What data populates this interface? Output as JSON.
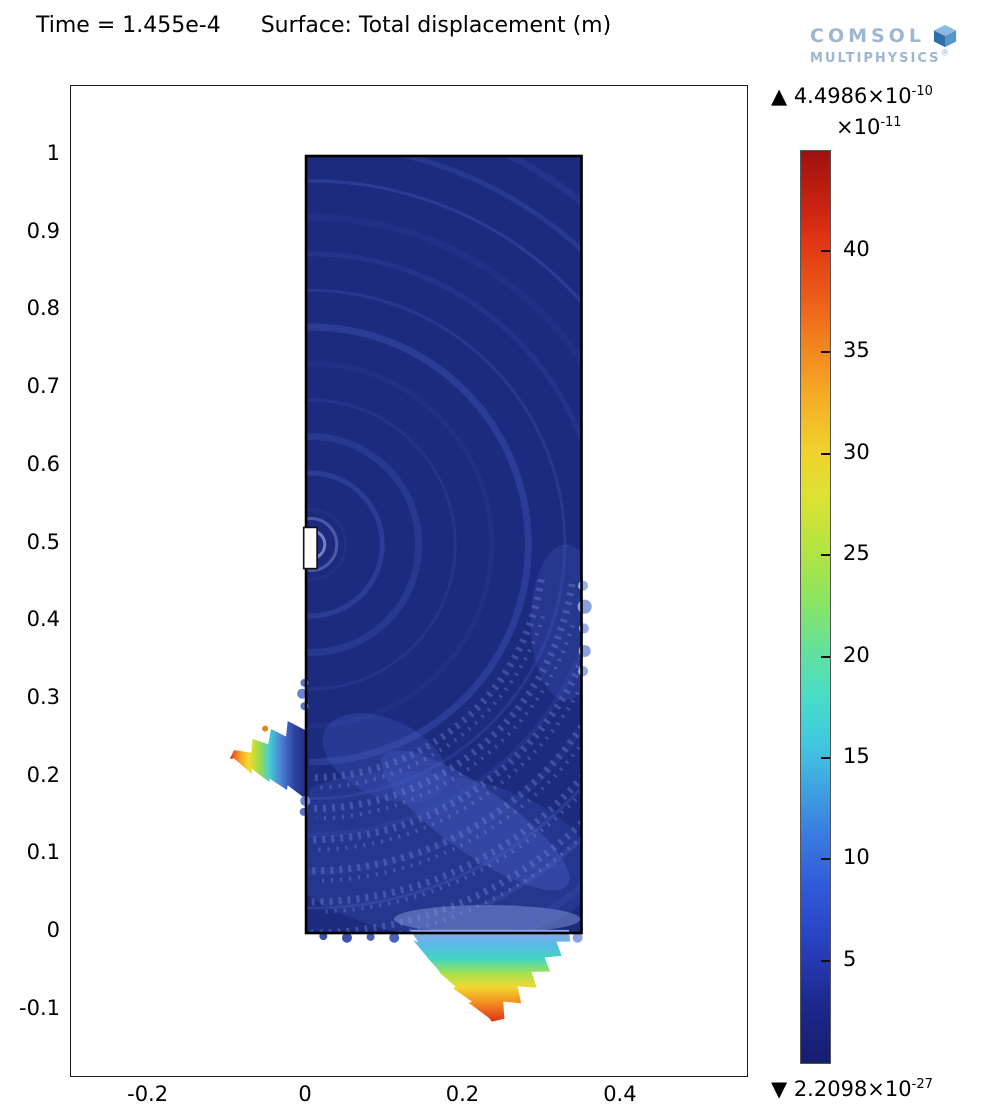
{
  "header": {
    "time_text": "Time = 1.455e-4",
    "surface_text": "Surface: Total displacement (m)"
  },
  "logo": {
    "line1": "COMSOL",
    "line2": "MULTIPHYSICS",
    "reg": "®"
  },
  "colorbar_labels": {
    "max_main": "▲ 4.4986×10",
    "max_exp": "-10",
    "scale_main": "×10",
    "scale_exp": "-11",
    "min_main": "▼ 2.2098×10",
    "min_exp": "-27"
  },
  "chart_data": {
    "type": "heatmap",
    "title": "Time = 1.455e-4   Surface: Total displacement (m)",
    "xlabel": "",
    "ylabel": "",
    "xlim": [
      -0.2986,
      0.5602
    ],
    "ylim": [
      -0.184,
      1.0901
    ],
    "x_ticks": [
      "-0.2",
      "0",
      "0.2",
      "0.4"
    ],
    "y_ticks": [
      "1",
      "0.9",
      "0.8",
      "0.7",
      "0.6",
      "0.5",
      "0.4",
      "0.3",
      "0.2",
      "0.1",
      "0",
      "-0.1"
    ],
    "grid": false,
    "legend": "colorbar-right",
    "surface_quantity": "Total displacement (m)",
    "surface_max": 4.4986e-10,
    "surface_min": 2.2098e-27,
    "colors": {
      "domain_fill": "#1c2b7d",
      "frame": "#1a1a1a"
    },
    "colorbar": {
      "colormap": "jet",
      "scale_exponent": -11,
      "value_min": 0,
      "value_max": 44.986,
      "ticks": [
        "40",
        "35",
        "30",
        "25",
        "20",
        "15",
        "10",
        "5"
      ],
      "gradient_stops": [
        [
          "0%",
          "#161d6e"
        ],
        [
          "7%",
          "#1d2a90"
        ],
        [
          "13%",
          "#2840c0"
        ],
        [
          "19%",
          "#3058d8"
        ],
        [
          "25%",
          "#3a7be0"
        ],
        [
          "30%",
          "#3fa2e0"
        ],
        [
          "35%",
          "#40c8e0"
        ],
        [
          "40%",
          "#48dcc8"
        ],
        [
          "45%",
          "#62e0a0"
        ],
        [
          "50%",
          "#86e468"
        ],
        [
          "56%",
          "#b2e442"
        ],
        [
          "62%",
          "#dce234"
        ],
        [
          "67%",
          "#f0d22e"
        ],
        [
          "73%",
          "#f5ac26"
        ],
        [
          "79%",
          "#f2821e"
        ],
        [
          "85%",
          "#ea5518"
        ],
        [
          "91%",
          "#dd3014"
        ],
        [
          "96%",
          "#bc1c10"
        ],
        [
          "100%",
          "#9e1212"
        ]
      ]
    },
    "domain_rect": {
      "x0": 0,
      "x1": 0.35,
      "y0": 0,
      "y1": 1
    },
    "source_mark": {
      "x0": -0.003,
      "x1": 0.014,
      "y0": 0.469,
      "y1": 0.522
    },
    "ripples": {
      "center": [
        0.006,
        0.5
      ],
      "count": 12,
      "r0": 0.045,
      "dr": 0.047,
      "color": "#4a63c8"
    },
    "speckle": {
      "radii": [
        0.3,
        0.34,
        0.38,
        0.42,
        0.46,
        0.5
      ],
      "a0": 0.15,
      "a1": 1.65,
      "color": "#7e92de",
      "color2": "#97a8e6"
    },
    "texture_washes": [
      {
        "cx": 0.16,
        "cy": 0.1,
        "rx": 0.21,
        "ry": 0.105,
        "rot": 8,
        "color": "#2c3e9a",
        "opacity": 0.6
      },
      {
        "cx": 0.215,
        "cy": 0.145,
        "rx": 0.145,
        "ry": 0.042,
        "rot": 35,
        "color": "#4a62c6",
        "opacity": 0.38
      },
      {
        "cx": 0.1,
        "cy": 0.225,
        "rx": 0.085,
        "ry": 0.05,
        "rot": 25,
        "color": "#3a50b4",
        "opacity": 0.4
      },
      {
        "cx": 0.23,
        "cy": 0.018,
        "rx": 0.12,
        "ry": 0.018,
        "rot": 0,
        "color": "#8ea4e4",
        "opacity": 0.45
      },
      {
        "cx": 0.33,
        "cy": 0.4,
        "rx": 0.045,
        "ry": 0.1,
        "rot": 0,
        "color": "#31449f",
        "opacity": 0.5
      }
    ],
    "lobes": [
      {
        "id": "left-lobe",
        "dir": "left",
        "spikes": 8,
        "base": {
          "x": 0.004,
          "y0": 0.178,
          "y1": 0.272
        },
        "tip": {
          "x": -0.097,
          "y": 0.224
        },
        "stops": [
          [
            "0%",
            "#df3120"
          ],
          [
            "12%",
            "#f59a24"
          ],
          [
            "24%",
            "#f2dc31"
          ],
          [
            "37%",
            "#9fdc45"
          ],
          [
            "50%",
            "#46cdd2"
          ],
          [
            "64%",
            "#4b85d6"
          ],
          [
            "82%",
            "#2d3f9f"
          ],
          [
            "100%",
            "#1c2b7d"
          ]
        ]
      },
      {
        "id": "bottom-lobe",
        "dir": "down",
        "spikes": 11,
        "base": {
          "y": 0.004,
          "x0": 0.132,
          "x1": 0.334
        },
        "tip": {
          "x": 0.236,
          "y": -0.114
        },
        "stops": [
          [
            "0%",
            "#93a7e6"
          ],
          [
            "16%",
            "#59b9e8"
          ],
          [
            "32%",
            "#43d6c0"
          ],
          [
            "48%",
            "#a8e24a"
          ],
          [
            "62%",
            "#f0d832"
          ],
          [
            "78%",
            "#f59422"
          ],
          [
            "100%",
            "#e03018"
          ]
        ]
      }
    ],
    "edge_bumps": [
      {
        "x": 0.352,
        "y": 0.337,
        "r": 5,
        "color": "#96aae4"
      },
      {
        "x": 0.354,
        "y": 0.363,
        "r": 6,
        "color": "#8aa0e0"
      },
      {
        "x": 0.353,
        "y": 0.392,
        "r": 5,
        "color": "#96aae4"
      },
      {
        "x": 0.354,
        "y": 0.42,
        "r": 7,
        "color": "#8aa0e0"
      },
      {
        "x": 0.352,
        "y": 0.447,
        "r": 5,
        "color": "#9db0e6"
      },
      {
        "x": -0.002,
        "y": 0.292,
        "r": 4,
        "color": "#5a74cc"
      },
      {
        "x": -0.005,
        "y": 0.308,
        "r": 5,
        "color": "#6a84d4"
      },
      {
        "x": -0.002,
        "y": 0.322,
        "r": 4,
        "color": "#5a74cc"
      },
      {
        "x": -0.003,
        "y": 0.156,
        "r": 4,
        "color": "#5a74cc"
      },
      {
        "x": -0.001,
        "y": 0.17,
        "r": 5,
        "color": "#6a84d4"
      },
      {
        "x": -0.052,
        "y": 0.263,
        "r": 3,
        "color": "#e8821e"
      },
      {
        "x": 0.022,
        "y": -0.004,
        "r": 4,
        "color": "#3a50aa"
      },
      {
        "x": 0.052,
        "y": -0.006,
        "r": 5,
        "color": "#3a50aa"
      },
      {
        "x": 0.082,
        "y": -0.005,
        "r": 4,
        "color": "#4a60ba"
      },
      {
        "x": 0.112,
        "y": -0.006,
        "r": 5,
        "color": "#4a60ba"
      },
      {
        "x": 0.345,
        "y": -0.006,
        "r": 5,
        "color": "#8aa0e0"
      }
    ]
  }
}
